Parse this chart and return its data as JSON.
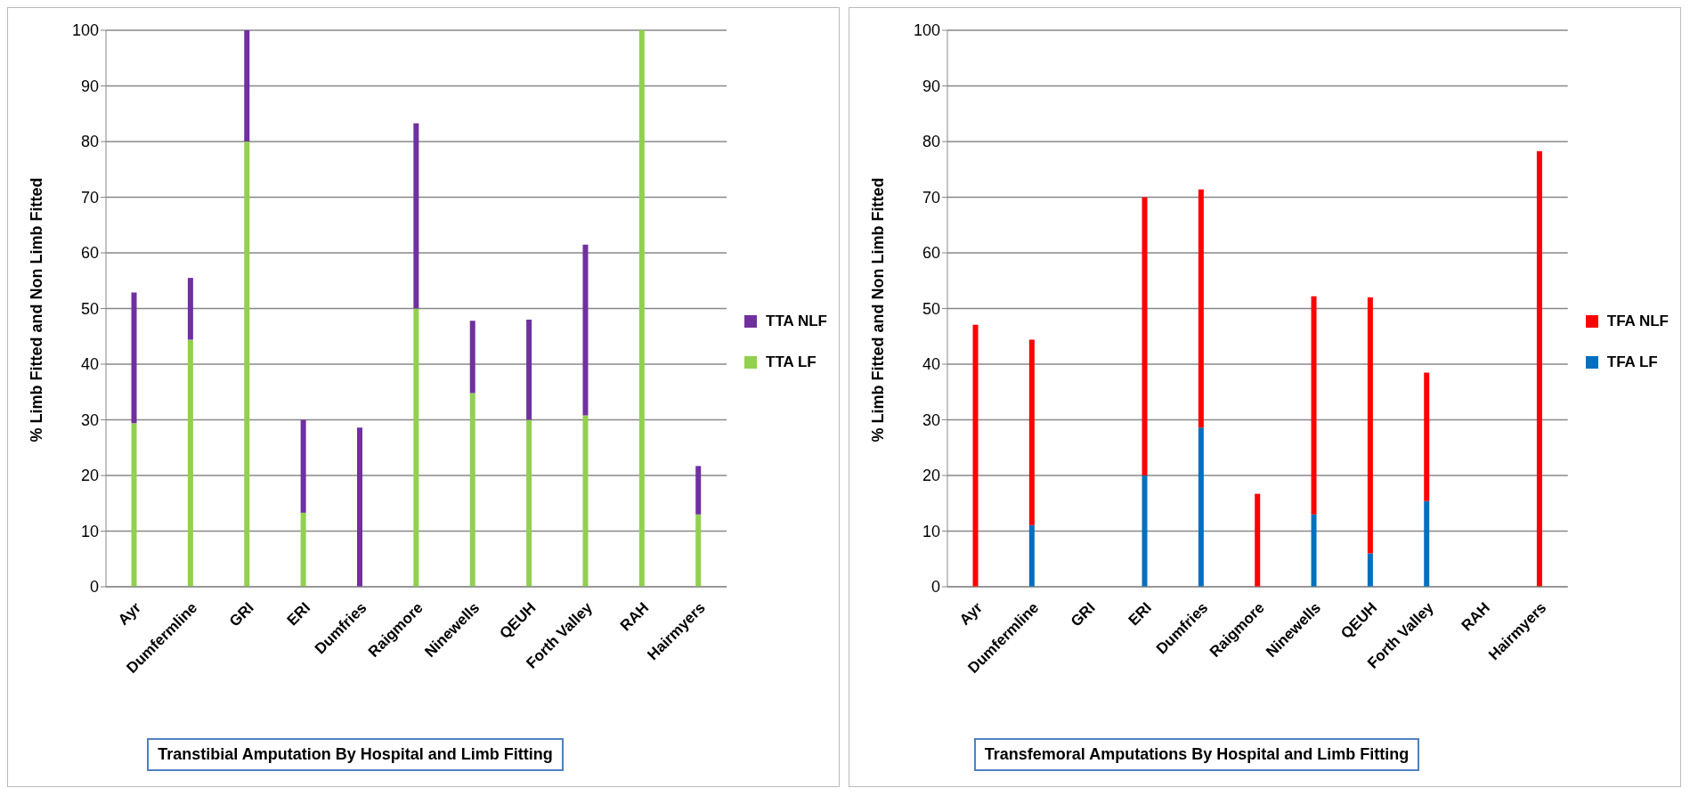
{
  "chart_data": [
    {
      "type": "bar",
      "stacked": true,
      "title": "Transtibial Amputation By Hospital and Limb Fitting",
      "ylabel": "% Limb Fitted and Non Limb Fitted",
      "categories": [
        "Ayr",
        "Dumfermline",
        "GRI",
        "ERI",
        "Dumfries",
        "Raigmore",
        "Ninewells",
        "QEUH",
        "Forth Valley",
        "RAH",
        "Hairmyers"
      ],
      "ylim": [
        0,
        100
      ],
      "yticks": [
        0,
        10,
        20,
        30,
        40,
        50,
        60,
        70,
        80,
        90,
        100
      ],
      "grid": "y",
      "legend": "right",
      "series": [
        {
          "name": "TTA LF",
          "color": "#92d050",
          "values": [
            29.4,
            44.4,
            80,
            13.3,
            0,
            50,
            34.8,
            30,
            30.8,
            100,
            13
          ]
        },
        {
          "name": "TTA NLF",
          "color": "#7030a0",
          "values": [
            23.5,
            11.1,
            20,
            16.7,
            28.6,
            33.3,
            13,
            18,
            30.7,
            0,
            8.7
          ]
        }
      ]
    },
    {
      "type": "bar",
      "stacked": true,
      "title": "Transfemoral Amputations By Hospital and Limb Fitting",
      "ylabel": "% Limb Fitted and Non Limb Fitted",
      "categories": [
        "Ayr",
        "Dumfermline",
        "GRI",
        "ERI",
        "Dumfries",
        "Raigmore",
        "Ninewells",
        "QEUH",
        "Forth Valley",
        "RAH",
        "Hairmyers"
      ],
      "ylim": [
        0,
        100
      ],
      "yticks": [
        0,
        10,
        20,
        30,
        40,
        50,
        60,
        70,
        80,
        90,
        100
      ],
      "grid": "y",
      "legend": "right",
      "series": [
        {
          "name": "TFA LF",
          "color": "#0070c0",
          "values": [
            0,
            11.1,
            0,
            20,
            28.6,
            0,
            13,
            6,
            15.4,
            0,
            0
          ]
        },
        {
          "name": "TFA NLF",
          "color": "#ff0000",
          "values": [
            47.1,
            33.3,
            0,
            50,
            42.8,
            16.7,
            39.2,
            46,
            23.1,
            0,
            78.3
          ]
        }
      ]
    }
  ]
}
